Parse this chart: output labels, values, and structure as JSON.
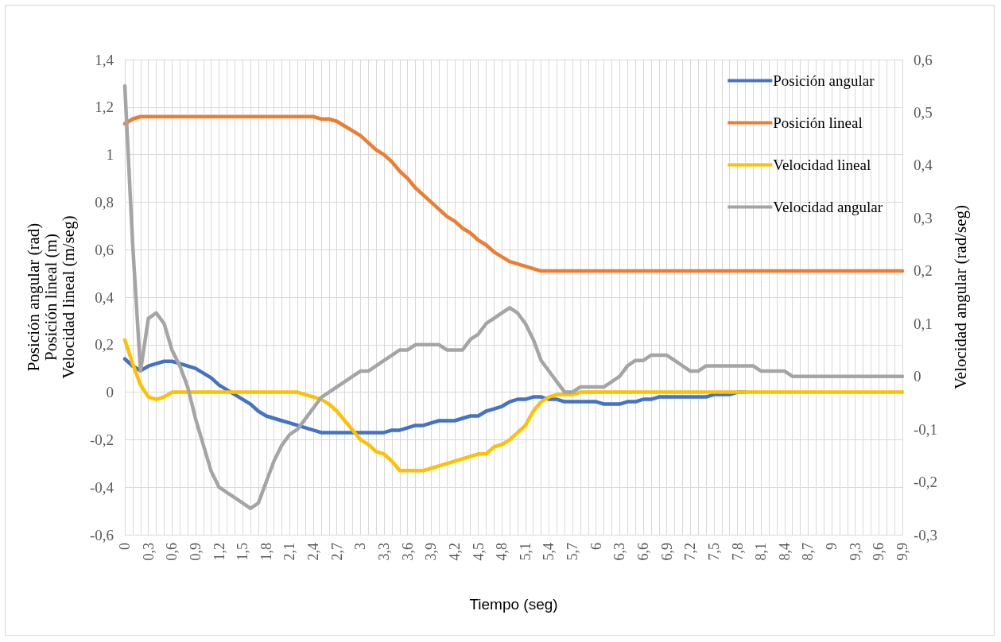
{
  "chart_data": {
    "type": "line",
    "xlabel": "Tiempo (seg)",
    "ylabel": "Posición angular (rad)\nPosición lineal (m)\nVelocidad lineal (m/seg)",
    "y2label": "Velocidad angular (rad/seg)",
    "categories": [
      "0",
      null,
      null,
      "0,3",
      null,
      null,
      "0,6",
      null,
      null,
      "0,9",
      null,
      null,
      "1,2",
      null,
      null,
      "1,5",
      null,
      null,
      "1,8",
      null,
      null,
      "2,1",
      null,
      null,
      "2,4",
      null,
      null,
      "2,7",
      null,
      null,
      "3",
      null,
      null,
      "3,3",
      null,
      null,
      "3,6",
      null,
      null,
      "3,9",
      null,
      null,
      "4,2",
      null,
      null,
      "4,5",
      null,
      null,
      "4,8",
      null,
      null,
      "5,1",
      null,
      null,
      "5,4",
      null,
      null,
      "5,7",
      null,
      null,
      "6",
      null,
      null,
      "6,3",
      null,
      null,
      "6,6",
      null,
      null,
      "6,9",
      null,
      null,
      "7,2",
      null,
      null,
      "7,5",
      null,
      null,
      "7,8",
      null,
      null,
      "8,1",
      null,
      null,
      "8,4",
      null,
      null,
      "8,7",
      null,
      null,
      "9",
      null,
      null,
      "9,3",
      null,
      null,
      "9,6",
      null,
      null,
      "9,9"
    ],
    "series": [
      {
        "name": "Posición angular",
        "color": "#4472c4",
        "values": [
          0.14,
          0.11,
          0.09,
          0.11,
          0.12,
          0.13,
          0.13,
          0.12,
          0.11,
          0.1,
          0.08,
          0.06,
          0.03,
          0.01,
          -0.01,
          -0.03,
          -0.05,
          -0.08,
          -0.1,
          -0.11,
          -0.12,
          -0.13,
          -0.14,
          -0.15,
          -0.16,
          -0.17,
          -0.17,
          -0.17,
          -0.17,
          -0.17,
          -0.17,
          -0.17,
          -0.17,
          -0.17,
          -0.16,
          -0.16,
          -0.15,
          -0.14,
          -0.14,
          -0.13,
          -0.12,
          -0.12,
          -0.12,
          -0.11,
          -0.1,
          -0.1,
          -0.08,
          -0.07,
          -0.06,
          -0.04,
          -0.03,
          -0.03,
          -0.02,
          -0.02,
          -0.03,
          -0.03,
          -0.04,
          -0.04,
          -0.04,
          -0.04,
          -0.04,
          -0.05,
          -0.05,
          -0.05,
          -0.04,
          -0.04,
          -0.03,
          -0.03,
          -0.02,
          -0.02,
          -0.02,
          -0.02,
          -0.02,
          -0.02,
          -0.02,
          -0.01,
          -0.01,
          -0.01,
          0,
          0,
          null,
          null,
          null,
          null,
          null,
          null,
          null,
          null,
          null,
          null,
          null,
          null,
          null,
          null,
          null,
          null,
          null,
          null,
          null,
          null
        ]
      },
      {
        "name": "Posición lineal",
        "color": "#ed7d31",
        "values": [
          1.13,
          1.15,
          1.16,
          1.16,
          1.16,
          1.16,
          1.16,
          1.16,
          1.16,
          1.16,
          1.16,
          1.16,
          1.16,
          1.16,
          1.16,
          1.16,
          1.16,
          1.16,
          1.16,
          1.16,
          1.16,
          1.16,
          1.16,
          1.16,
          1.16,
          1.15,
          1.15,
          1.14,
          1.12,
          1.1,
          1.08,
          1.05,
          1.02,
          1.0,
          0.97,
          0.93,
          0.9,
          0.86,
          0.83,
          0.8,
          0.77,
          0.74,
          0.72,
          0.69,
          0.67,
          0.64,
          0.62,
          0.59,
          0.57,
          0.55,
          0.54,
          0.53,
          0.52,
          0.51,
          0.51,
          0.51,
          0.51,
          0.51,
          0.51,
          0.51,
          0.51,
          0.51,
          0.51,
          0.51,
          0.51,
          0.51,
          0.51,
          0.51,
          0.51,
          0.51,
          0.51,
          0.51,
          0.51,
          0.51,
          0.51,
          0.51,
          0.51,
          0.51,
          0.51,
          0.51,
          0.51,
          0.51,
          0.51,
          0.51,
          0.51,
          0.51,
          0.51,
          0.51,
          0.51,
          0.51,
          0.51,
          0.51,
          0.51,
          0.51,
          0.51,
          0.51,
          0.51,
          0.51,
          0.51,
          0.51
        ]
      },
      {
        "name": "Velocidad lineal",
        "color": "#ffc000",
        "values": [
          0.22,
          0.12,
          0.03,
          -0.02,
          -0.03,
          -0.02,
          0,
          0,
          0,
          0,
          0,
          0,
          0,
          0,
          0,
          0,
          0,
          0,
          0,
          0,
          0,
          0,
          0,
          -0.01,
          -0.02,
          -0.03,
          -0.05,
          -0.08,
          -0.12,
          -0.16,
          -0.2,
          -0.22,
          -0.25,
          -0.26,
          -0.29,
          -0.33,
          -0.33,
          -0.33,
          -0.33,
          -0.32,
          -0.31,
          -0.3,
          -0.29,
          -0.28,
          -0.27,
          -0.26,
          -0.26,
          -0.23,
          -0.22,
          -0.2,
          -0.17,
          -0.14,
          -0.08,
          -0.04,
          -0.02,
          -0.01,
          -0.01,
          -0.01,
          0,
          0,
          0,
          0,
          0,
          0,
          0,
          0,
          0,
          0,
          0,
          0,
          0,
          0,
          0,
          0,
          0,
          0,
          0,
          0,
          0,
          0,
          0,
          0,
          0,
          0,
          0,
          0,
          0,
          0,
          0,
          0,
          0,
          0,
          0,
          0,
          0,
          0,
          0,
          0,
          0,
          0
        ]
      },
      {
        "name": "Velocidad angular",
        "color": "#a5a5a5",
        "axis": "y2",
        "values": [
          0.55,
          0.25,
          0.01,
          0.11,
          0.12,
          0.1,
          0.05,
          0.02,
          -0.02,
          -0.08,
          -0.13,
          -0.18,
          -0.21,
          -0.22,
          -0.23,
          -0.24,
          -0.25,
          -0.24,
          -0.2,
          -0.16,
          -0.13,
          -0.11,
          -0.1,
          -0.08,
          -0.06,
          -0.04,
          -0.03,
          -0.02,
          -0.01,
          0,
          0.01,
          0.01,
          0.02,
          0.03,
          0.04,
          0.05,
          0.05,
          0.06,
          0.06,
          0.06,
          0.06,
          0.05,
          0.05,
          0.05,
          0.07,
          0.08,
          0.1,
          0.11,
          0.12,
          0.13,
          0.12,
          0.1,
          0.07,
          0.03,
          0.01,
          -0.01,
          -0.03,
          -0.03,
          -0.02,
          -0.02,
          -0.02,
          -0.02,
          -0.01,
          0,
          0.02,
          0.03,
          0.03,
          0.04,
          0.04,
          0.04,
          0.03,
          0.02,
          0.01,
          0.01,
          0.02,
          0.02,
          0.02,
          0.02,
          0.02,
          0.02,
          0.02,
          0.01,
          0.01,
          0.01,
          0.01,
          0,
          0,
          0,
          0,
          0,
          0,
          0,
          0,
          0,
          0,
          0,
          0,
          0,
          0,
          0
        ]
      }
    ],
    "ylim": [
      -0.6,
      1.4
    ],
    "yticks": [
      {
        "value": -0.6,
        "label": "-0,6"
      },
      {
        "value": -0.4,
        "label": "-0,4"
      },
      {
        "value": -0.2,
        "label": "-0,2"
      },
      0,
      {
        "value": 0.2,
        "label": "0,2"
      },
      {
        "value": 0.4,
        "label": "0,4"
      },
      {
        "value": 0.6,
        "label": "0,6"
      },
      {
        "value": 0.8,
        "label": "0,8"
      },
      1,
      {
        "value": 1.2,
        "label": "1,2"
      },
      {
        "value": 1.4,
        "label": "1,4"
      }
    ],
    "y2lim": [
      -0.3,
      0.6
    ],
    "y2ticks": [
      {
        "value": -0.3,
        "label": "-0,3"
      },
      {
        "value": -0.2,
        "label": "-0,2"
      },
      {
        "value": -0.1,
        "label": "-0,1"
      },
      0,
      {
        "value": 0.1,
        "label": "0,1"
      },
      {
        "value": 0.2,
        "label": "0,2"
      },
      {
        "value": 0.3,
        "label": "0,3"
      },
      {
        "value": 0.4,
        "label": "0,4"
      },
      {
        "value": 0.5,
        "label": "0,5"
      },
      {
        "value": 0.6,
        "label": "0,6"
      }
    ],
    "grid": true,
    "legend": "top right",
    "marker": "none",
    "line_style": "solid"
  }
}
